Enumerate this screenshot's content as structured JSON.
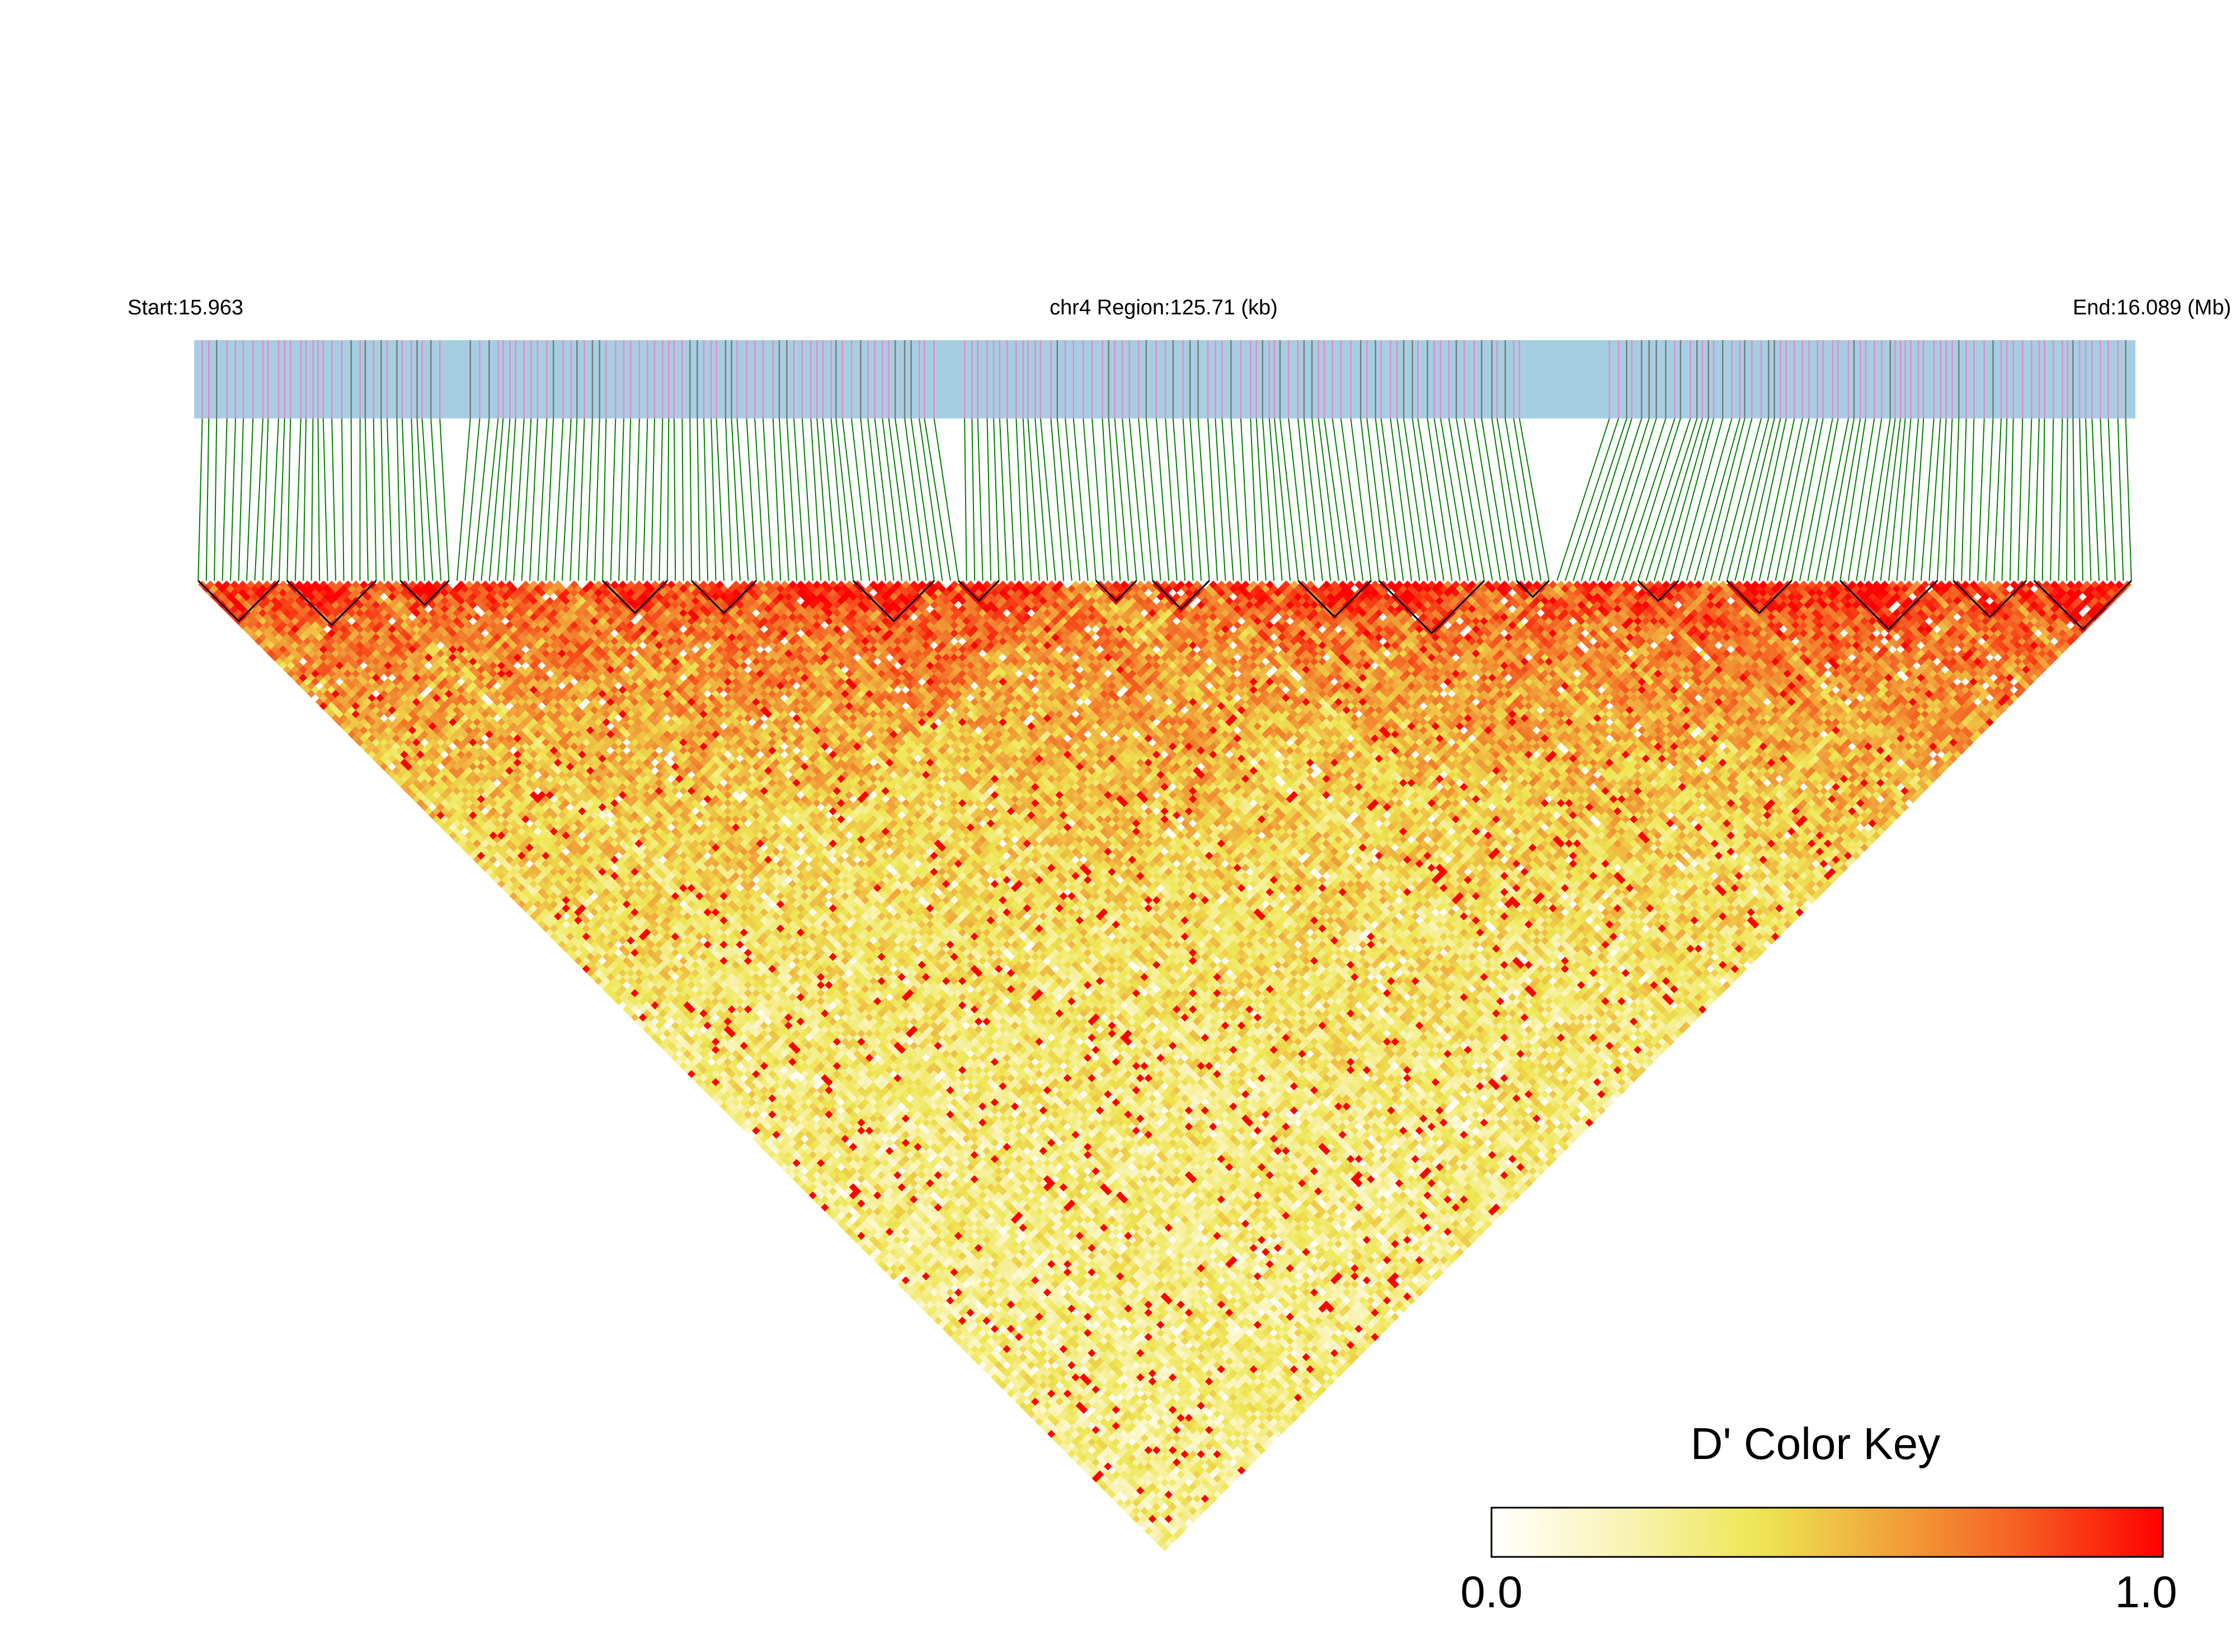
{
  "chart_data": {
    "type": "heatmap",
    "title": "",
    "chromosome": "chr4",
    "region_label": "chr4 Region:125.71 (kb)",
    "start_label": "Start:15.963",
    "end_label": "End:16.089 (Mb)",
    "start_mb": 15.963,
    "end_mb": 16.089,
    "region_kb": 125.71,
    "color_key": {
      "title": "D' Color Key",
      "min_label": "0.0",
      "max_label": "1.0",
      "min": 0.0,
      "max": 1.0,
      "colors": [
        "#ffffff",
        "#f9f3b4",
        "#eee652",
        "#f0a23a",
        "#f55a20",
        "#ff0000"
      ]
    },
    "snp_track": {
      "background": "#a6cee3",
      "highlight_color": "#e58ac8",
      "dark_color": "#7a7a7a",
      "connector_color": "#008000"
    },
    "heatmap_colors": {
      "low": "#fffde6",
      "mid": "#f3e47a",
      "high": "#ff0000",
      "block_outline": "#000000"
    },
    "ld_blocks_kb": [
      [
        0.0,
        6.2
      ],
      [
        6.2,
        11.8
      ],
      [
        13.0,
        17.4
      ],
      [
        26.5,
        31.0
      ],
      [
        32.0,
        36.3
      ],
      [
        41.5,
        46.5
      ],
      [
        47.5,
        52.0
      ],
      [
        57.0,
        60.5
      ],
      [
        61.0,
        65.5
      ],
      [
        70.0,
        75.3
      ],
      [
        75.5,
        82.0
      ],
      [
        84.0,
        87.5
      ],
      [
        88.0,
        90.5
      ],
      [
        96.5,
        99.5
      ],
      [
        101.5,
        105.5
      ],
      [
        108.0,
        113.5
      ],
      [
        114.0,
        119.0
      ],
      [
        119.2,
        125.71
      ]
    ]
  }
}
